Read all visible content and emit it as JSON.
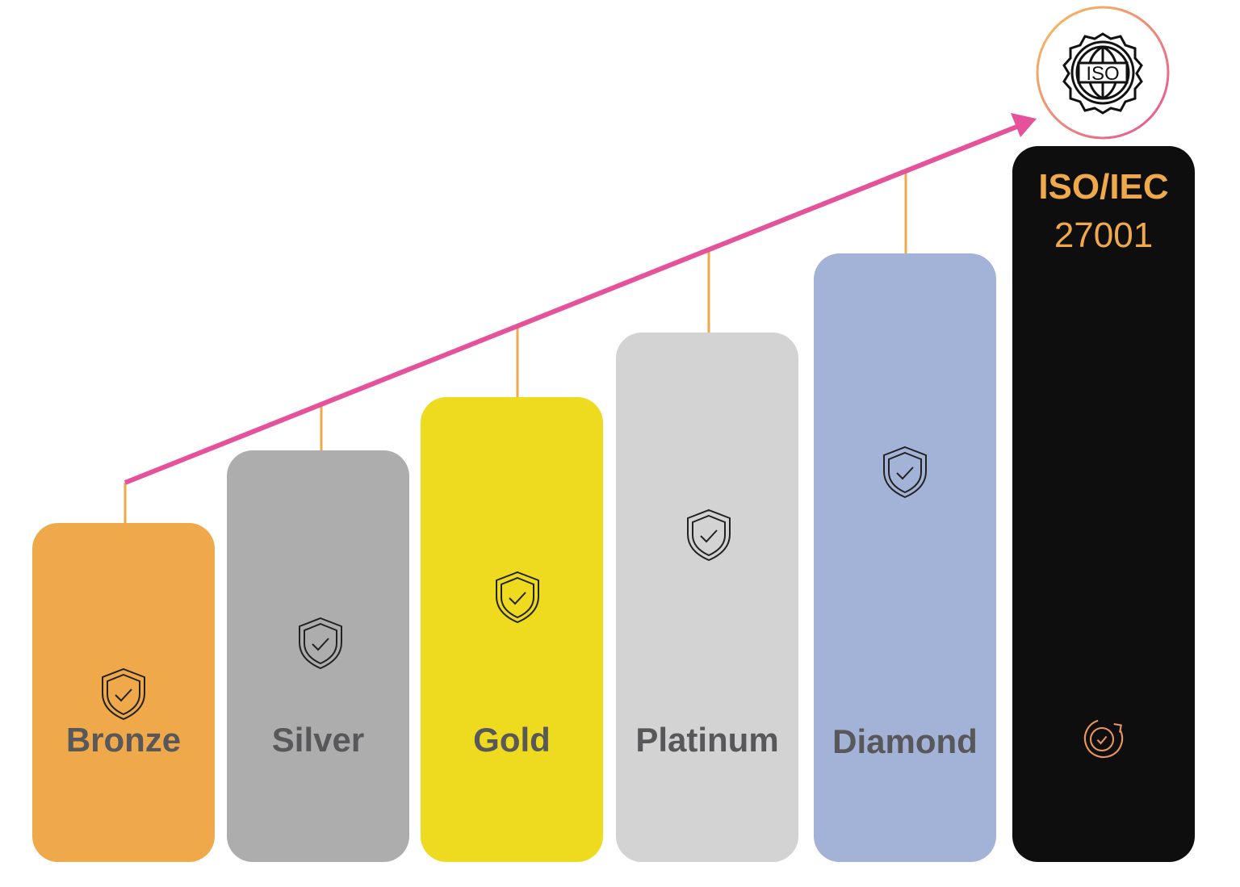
{
  "levels": [
    {
      "label": "Bronze",
      "color": "#EFA94A",
      "icon": "shield-check-icon"
    },
    {
      "label": "Silver",
      "color": "#ADADAD",
      "icon": "shield-check-icon"
    },
    {
      "label": "Gold",
      "color": "#EEDA1E",
      "icon": "shield-check-icon"
    },
    {
      "label": "Platinum",
      "color": "#D3D3D3",
      "icon": "shield-check-icon"
    },
    {
      "label": "Diamond",
      "color": "#A3B3D7",
      "icon": "shield-check-icon"
    }
  ],
  "final": {
    "title_line1": "ISO/IEC",
    "title_line2": "27001",
    "badge_text": "ISO",
    "color": "#0E0E0E",
    "text_color": "#EFA94A",
    "icons": [
      "iso-globe-badge-icon",
      "cycle-check-icon"
    ]
  },
  "arrow_color": "#E5519A",
  "connector_color": "#EFA94A"
}
